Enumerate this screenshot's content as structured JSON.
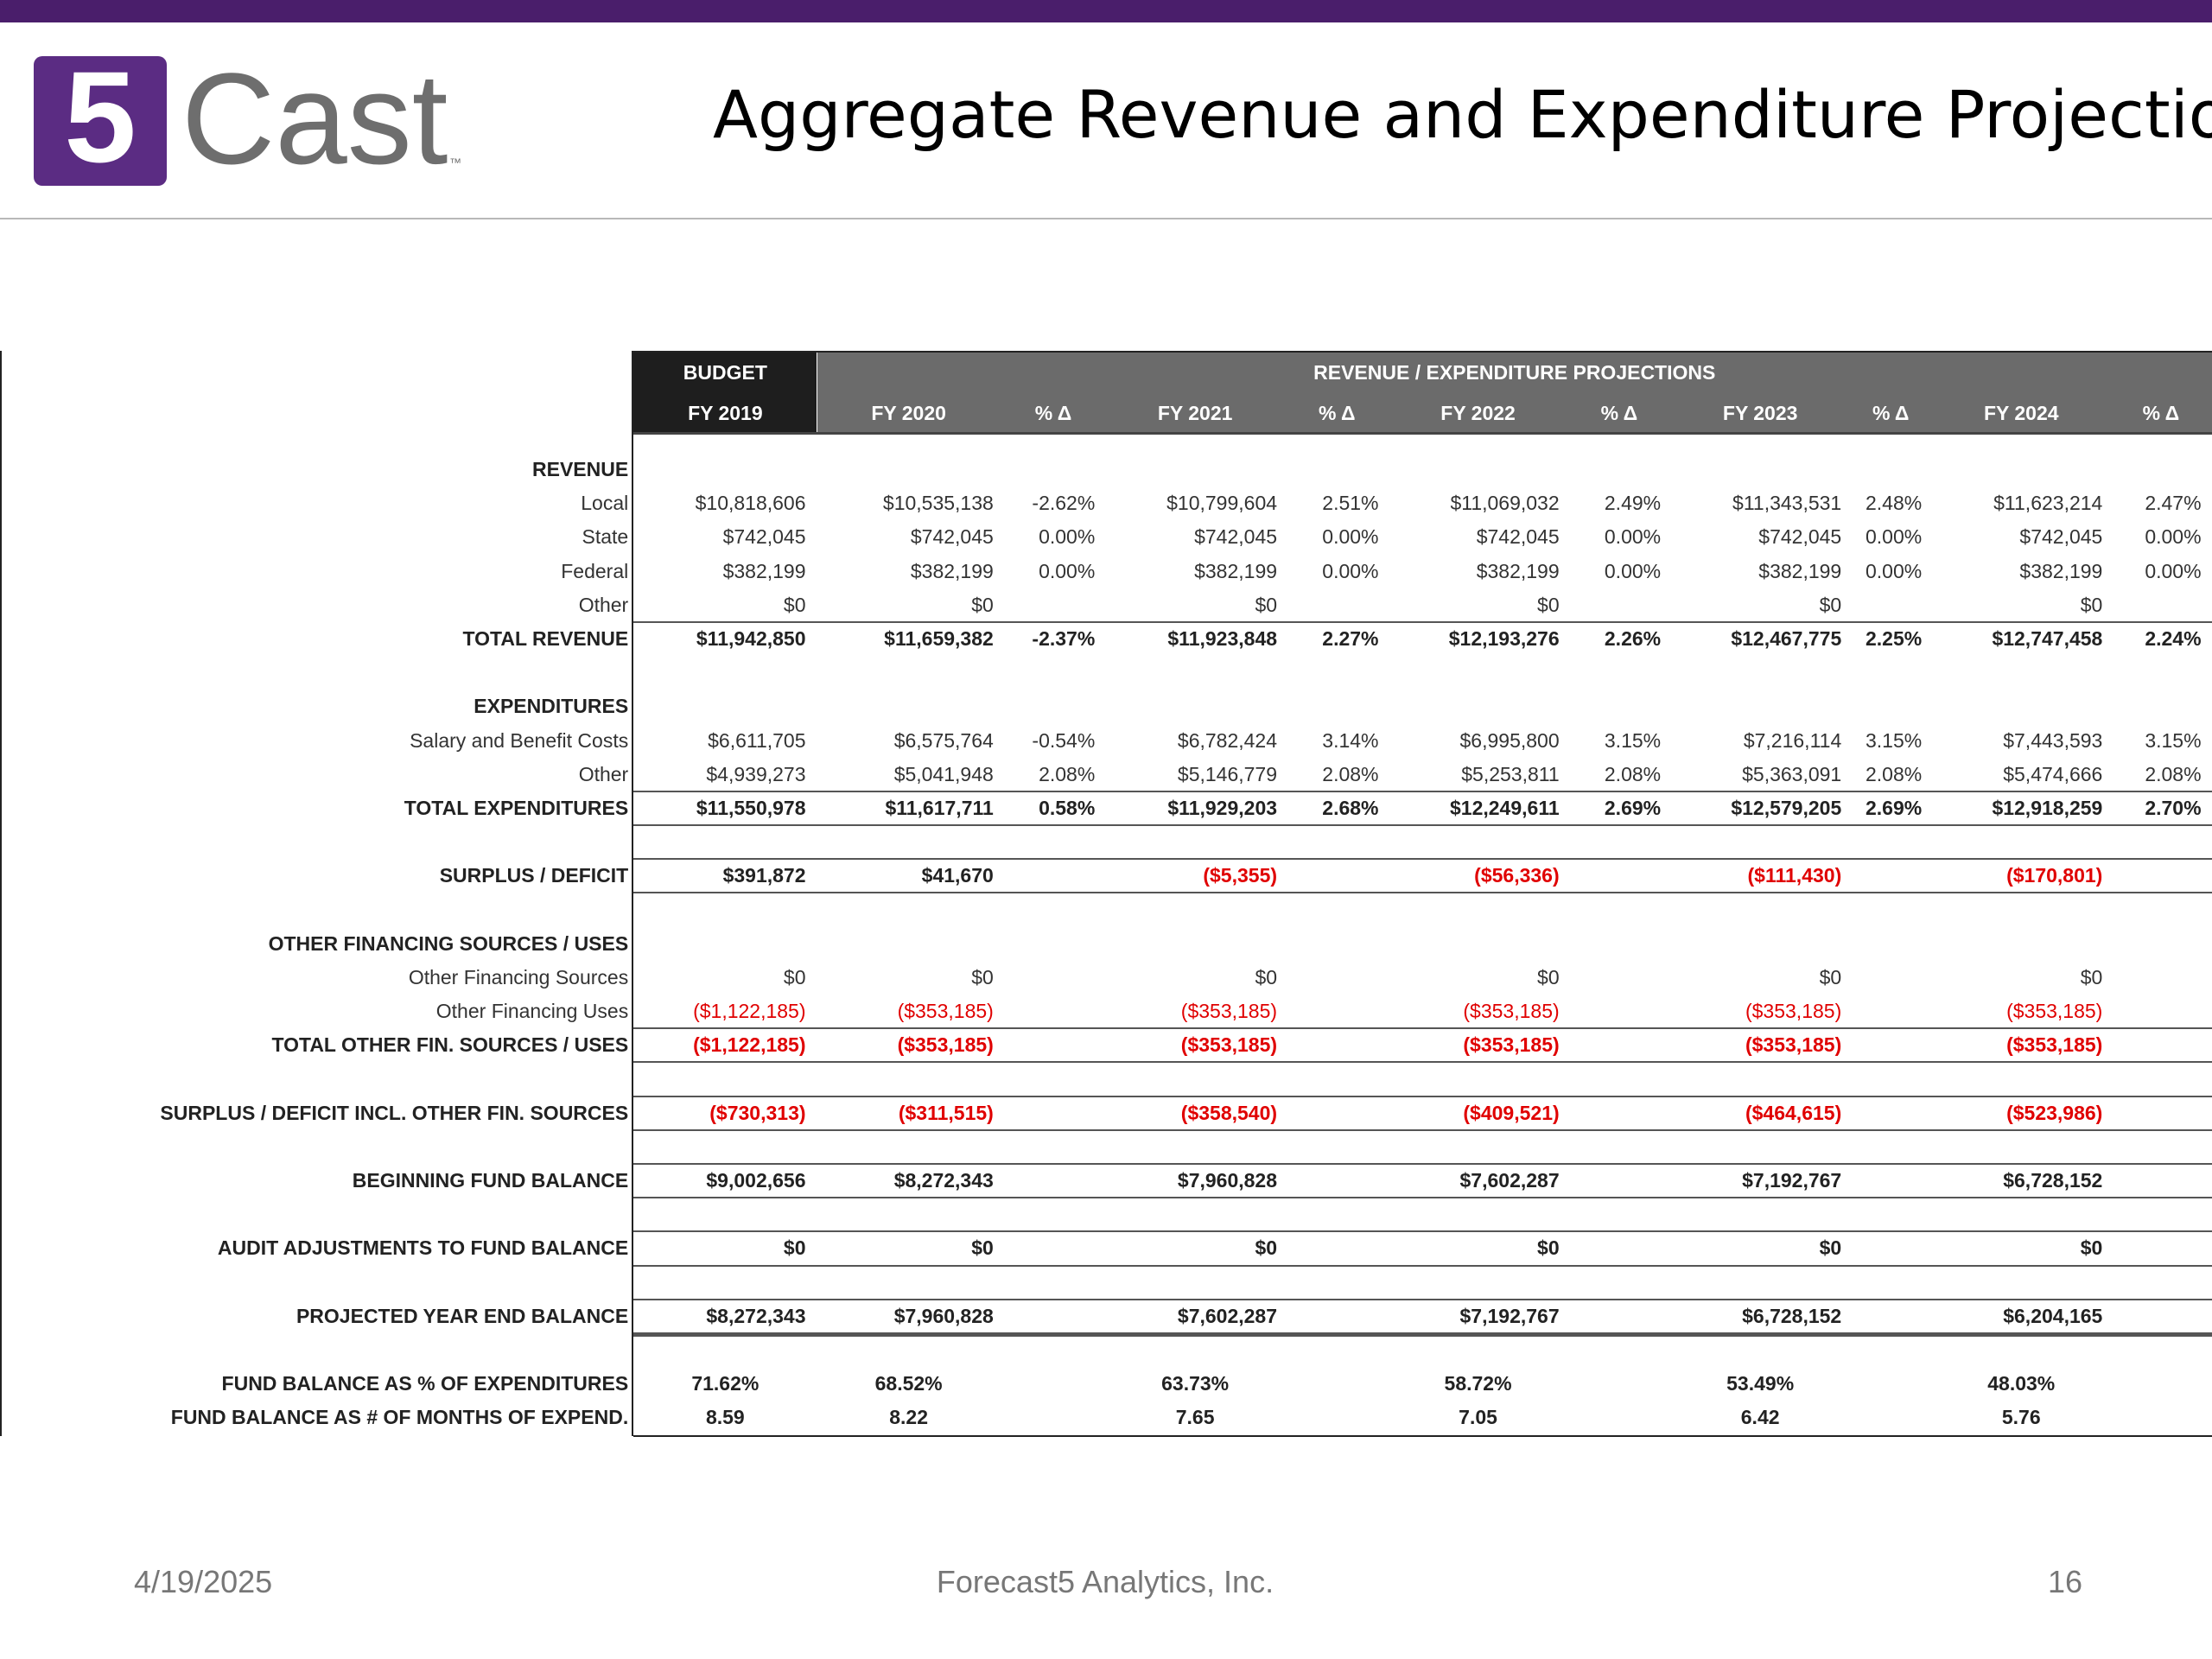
{
  "header": {
    "logo": {
      "mark": "5",
      "word": "Cast",
      "tm": "™"
    },
    "title": "Aggregate Revenue and Expenditure Projections"
  },
  "table": {
    "groups": [
      "BUDGET",
      "REVENUE / EXPENDITURE PROJECTIONS"
    ],
    "columns": [
      "FY 2019",
      "FY 2020",
      "% Δ",
      "FY 2021",
      "% Δ",
      "FY 2022",
      "% Δ",
      "FY 2023",
      "% Δ",
      "FY 2024",
      "% Δ"
    ],
    "rows": [
      {
        "kind": "section",
        "label": "REVENUE"
      },
      {
        "kind": "item",
        "label": "Local",
        "cells": [
          "$10,818,606",
          "$10,535,138",
          "-2.62%",
          "$10,799,604",
          "2.51%",
          "$11,069,032",
          "2.49%",
          "$11,343,531",
          "2.48%",
          "$11,623,214",
          "2.47%"
        ]
      },
      {
        "kind": "item",
        "label": "State",
        "cells": [
          "$742,045",
          "$742,045",
          "0.00%",
          "$742,045",
          "0.00%",
          "$742,045",
          "0.00%",
          "$742,045",
          "0.00%",
          "$742,045",
          "0.00%"
        ]
      },
      {
        "kind": "item",
        "label": "Federal",
        "cells": [
          "$382,199",
          "$382,199",
          "0.00%",
          "$382,199",
          "0.00%",
          "$382,199",
          "0.00%",
          "$382,199",
          "0.00%",
          "$382,199",
          "0.00%"
        ]
      },
      {
        "kind": "item",
        "label": "Other",
        "cells": [
          "$0",
          "$0",
          null,
          "$0",
          null,
          "$0",
          null,
          "$0",
          null,
          "$0",
          null
        ]
      },
      {
        "kind": "total",
        "label": "TOTAL REVENUE",
        "cells": [
          "$11,942,850",
          "$11,659,382",
          "-2.37%",
          "$11,923,848",
          "2.27%",
          "$12,193,276",
          "2.26%",
          "$12,467,775",
          "2.25%",
          "$12,747,458",
          "2.24%"
        ]
      },
      {
        "kind": "spacer"
      },
      {
        "kind": "section",
        "label": "EXPENDITURES"
      },
      {
        "kind": "item",
        "label": "Salary and Benefit Costs",
        "cells": [
          "$6,611,705",
          "$6,575,764",
          "-0.54%",
          "$6,782,424",
          "3.14%",
          "$6,995,800",
          "3.15%",
          "$7,216,114",
          "3.15%",
          "$7,443,593",
          "3.15%"
        ]
      },
      {
        "kind": "item",
        "label": "Other",
        "cells": [
          "$4,939,273",
          "$5,041,948",
          "2.08%",
          "$5,146,779",
          "2.08%",
          "$5,253,811",
          "2.08%",
          "$5,363,091",
          "2.08%",
          "$5,474,666",
          "2.08%"
        ]
      },
      {
        "kind": "key",
        "label": "TOTAL EXPENDITURES",
        "cells": [
          "$11,550,978",
          "$11,617,711",
          "0.58%",
          "$11,929,203",
          "2.68%",
          "$12,249,611",
          "2.69%",
          "$12,579,205",
          "2.69%",
          "$12,918,259",
          "2.70%"
        ]
      },
      {
        "kind": "spacer"
      },
      {
        "kind": "key",
        "label": "SURPLUS / DEFICIT",
        "cells": [
          "$391,872",
          "$41,670",
          null,
          "($5,355)",
          null,
          "($56,336)",
          null,
          "($111,430)",
          null,
          "($170,801)",
          null
        ]
      },
      {
        "kind": "spacer"
      },
      {
        "kind": "section",
        "label": "OTHER FINANCING SOURCES / USES"
      },
      {
        "kind": "item",
        "label": "Other Financing Sources",
        "cells": [
          "$0",
          "$0",
          null,
          "$0",
          null,
          "$0",
          null,
          "$0",
          null,
          "$0",
          null
        ]
      },
      {
        "kind": "item",
        "label": "Other Financing Uses",
        "cells": [
          "($1,122,185)",
          "($353,185)",
          null,
          "($353,185)",
          null,
          "($353,185)",
          null,
          "($353,185)",
          null,
          "($353,185)",
          null
        ]
      },
      {
        "kind": "key",
        "label": "TOTAL OTHER FIN. SOURCES / USES",
        "cells": [
          "($1,122,185)",
          "($353,185)",
          null,
          "($353,185)",
          null,
          "($353,185)",
          null,
          "($353,185)",
          null,
          "($353,185)",
          null
        ]
      },
      {
        "kind": "spacer"
      },
      {
        "kind": "key",
        "label": "SURPLUS / DEFICIT INCL. OTHER FIN. SOURCES",
        "cells": [
          "($730,313)",
          "($311,515)",
          null,
          "($358,540)",
          null,
          "($409,521)",
          null,
          "($464,615)",
          null,
          "($523,986)",
          null
        ]
      },
      {
        "kind": "spacer"
      },
      {
        "kind": "key",
        "label": "BEGINNING FUND BALANCE",
        "cells": [
          "$9,002,656",
          "$8,272,343",
          null,
          "$7,960,828",
          null,
          "$7,602,287",
          null,
          "$7,192,767",
          null,
          "$6,728,152",
          null
        ]
      },
      {
        "kind": "spacer"
      },
      {
        "kind": "key",
        "label": "AUDIT ADJUSTMENTS TO FUND BALANCE",
        "cells": [
          "$0",
          "$0",
          null,
          "$0",
          null,
          "$0",
          null,
          "$0",
          null,
          "$0",
          null
        ]
      },
      {
        "kind": "spacer"
      },
      {
        "kind": "key",
        "label": "PROJECTED YEAR END BALANCE",
        "cells": [
          "$8,272,343",
          "$7,960,828",
          null,
          "$7,602,287",
          null,
          "$7,192,767",
          null,
          "$6,728,152",
          null,
          "$6,204,165",
          null
        ]
      },
      {
        "kind": "spacer"
      },
      {
        "kind": "ratio",
        "label": "FUND BALANCE AS % OF EXPENDITURES",
        "cells": [
          "71.62%",
          "68.52%",
          null,
          "63.73%",
          null,
          "58.72%",
          null,
          "53.49%",
          null,
          "48.03%",
          null
        ]
      },
      {
        "kind": "ratio",
        "label": "FUND BALANCE AS # OF MONTHS OF EXPEND.",
        "cells": [
          "8.59",
          "8.22",
          null,
          "7.65",
          null,
          "7.05",
          null,
          "6.42",
          null,
          "5.76",
          null
        ]
      }
    ]
  },
  "footer": {
    "date": "4/19/2025",
    "company": "Forecast5 Analytics, Inc.",
    "page": "16"
  }
}
